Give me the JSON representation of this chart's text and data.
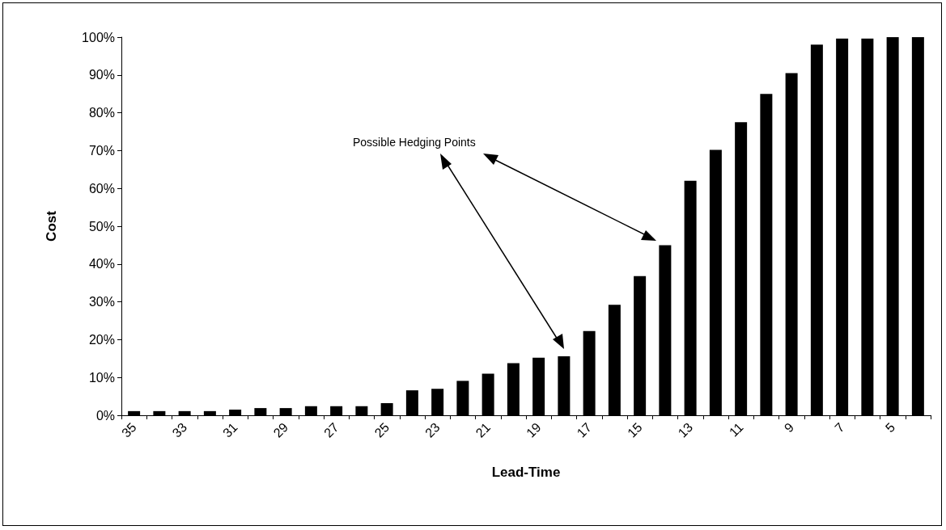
{
  "chart_data": {
    "type": "bar",
    "xlabel": "Lead-Time",
    "ylabel": "Cost",
    "categories": [
      "35",
      null,
      "33",
      null,
      "31",
      null,
      "29",
      null,
      "27",
      null,
      "25",
      null,
      "23",
      null,
      "21",
      null,
      "19",
      null,
      "17",
      null,
      "15",
      null,
      "13",
      null,
      "11",
      null,
      "9",
      null,
      "7",
      null,
      "5",
      null
    ],
    "values": [
      1.1,
      1.1,
      1.1,
      1.1,
      1.5,
      1.9,
      1.9,
      2.4,
      2.4,
      2.4,
      3.2,
      6.6,
      7.0,
      9.1,
      11.0,
      13.8,
      15.2,
      15.6,
      22.3,
      29.2,
      36.8,
      45.0,
      62.0,
      70.2,
      77.5,
      85.0,
      90.5,
      98.0,
      99.6,
      99.6,
      100,
      100
    ],
    "color": "#000000",
    "ylim": [
      0,
      100
    ],
    "yticks": [
      {
        "value": 0,
        "label": "0%"
      },
      {
        "value": 10,
        "label": "10%"
      },
      {
        "value": 20,
        "label": "20%"
      },
      {
        "value": 30,
        "label": "30%"
      },
      {
        "value": 40,
        "label": "40%"
      },
      {
        "value": 50,
        "label": "50%"
      },
      {
        "value": 60,
        "label": "60%"
      },
      {
        "value": 70,
        "label": "70%"
      },
      {
        "value": 80,
        "label": "80%"
      },
      {
        "value": 90,
        "label": "90%"
      },
      {
        "value": 100,
        "label": "100%"
      }
    ],
    "grid": false,
    "annotations": [
      "Possible Hedging Points"
    ]
  }
}
